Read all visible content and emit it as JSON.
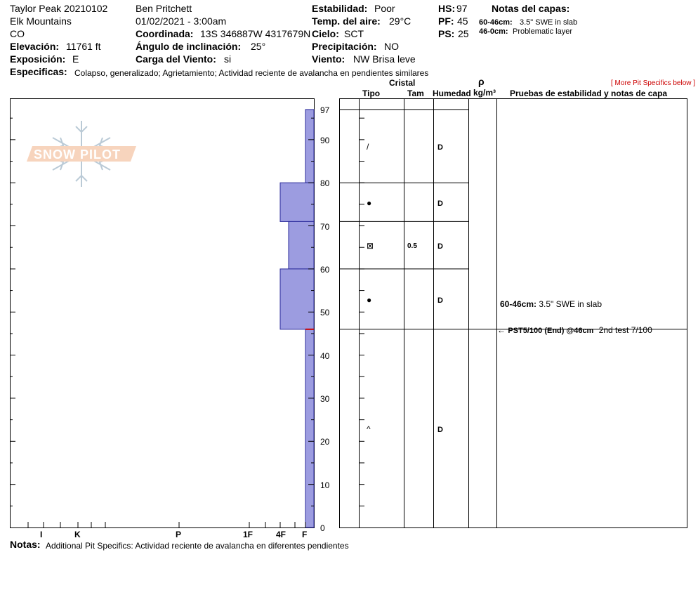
{
  "header": {
    "site": "Taylor Peak 20210102",
    "range": "Elk Mountains",
    "state": "CO",
    "elevation_label": "Elevación:",
    "elevation_value": "11761 ft",
    "aspect_label": "Exposición:",
    "aspect_value": "E",
    "observer": "Ben Pritchett",
    "datetime": "01/02/2021 - 3:00am",
    "coord_label": "Coordinada:",
    "coord_value": "13S 346887W 4317679N",
    "slope_label": "Ángulo de inclinación:",
    "slope_value": "25°",
    "windload_label": "Carga del Viento:",
    "windload_value": "si",
    "stability_label": "Estabilidad:",
    "stability_value": "Poor",
    "airtemp_label": "Temp. del aire:",
    "airtemp_value": "29°C",
    "sky_label": "Cielo:",
    "sky_value": "SCT",
    "precip_label": "Precipitación:",
    "precip_value": "NO",
    "wind_label": "Viento:",
    "wind_value": "NW Brisa leve",
    "hs_label": "HS:",
    "hs_value": "97",
    "pf_label": "PF:",
    "pf_value": "45",
    "ps_label": "PS:",
    "ps_value": "25",
    "layer_notes_title": "Notas del capas:",
    "layer_notes": [
      {
        "range": "60-46cm:",
        "text": "3.5\" SWE in slab"
      },
      {
        "range": "46-0cm:",
        "text": "Problematic layer"
      }
    ],
    "specifics_label": "Especificas:",
    "specifics_value": "Colapso, generalizado; Agrietamiento; Actividad reciente de avalancha en pendientes similares"
  },
  "more_specifics_link": "[ More Pit Specifics below ]",
  "columns": {
    "cristal": "Cristal",
    "tipo": "Tipo",
    "tam": "Tam",
    "humedad": "Humedad",
    "rho": "ρ",
    "density_unit": "kg/m³",
    "tests_title": "Pruebas de estabilidad y notas de capa"
  },
  "hardness_labels": [
    "I",
    "K",
    "P",
    "1F",
    "4F",
    "F"
  ],
  "depth_labels": [
    "97",
    "90",
    "80",
    "70",
    "60",
    "50",
    "40",
    "30",
    "20",
    "10",
    "0"
  ],
  "layers": [
    {
      "top": 97,
      "bottom": 80,
      "hardness": "F",
      "tipo_icon": "faceted-crystal-icon",
      "tipo_symbol": "/",
      "tam": "",
      "humedad": "D"
    },
    {
      "top": 80,
      "bottom": 71,
      "hardness": "4F",
      "tipo_icon": "rounded-grain-icon",
      "tipo_symbol": "●",
      "tam": "",
      "humedad": "D"
    },
    {
      "top": 71,
      "bottom": 60,
      "hardness": "4F-",
      "tipo_icon": "mixed-form-icon",
      "tipo_symbol": "⊠",
      "tam": "0.5",
      "humedad": "D"
    },
    {
      "top": 60,
      "bottom": 46,
      "hardness": "4F",
      "tipo_icon": "rounded-grain-icon",
      "tipo_symbol": "●",
      "tam": "",
      "humedad": "D"
    },
    {
      "top": 46,
      "bottom": 0,
      "hardness": "F",
      "tipo_icon": "depth-hoar-icon",
      "tipo_symbol": "^",
      "tam": "",
      "humedad": "D"
    }
  ],
  "layer_note_chart": {
    "range": "60-46cm:",
    "text": "3.5\" SWE in slab"
  },
  "test_result": {
    "bold": "PST5/100 (End) @46cm",
    "note": "2nd test 7/100",
    "depth": 46
  },
  "logo_text": "SNOW PILOT",
  "notes_label": "Notas:",
  "notes_value": "Additional Pit Specifics: Actividad reciente de avalancha en diferentes pendientes",
  "colors": {
    "hardness_fill": "#9c9ce0",
    "hardness_stroke": "#2a2a9a",
    "test_marker": "#cc0000"
  }
}
